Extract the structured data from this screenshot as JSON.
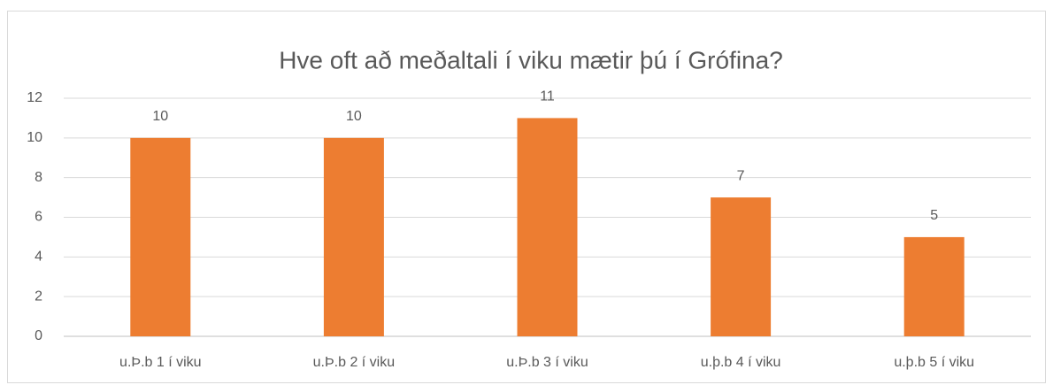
{
  "chart_data": {
    "type": "bar",
    "title": "Hve oft að meðaltali í viku mætir þú í Grófina?",
    "categories": [
      "u.Þ.b 1 í viku",
      "u.Þ.b 2 í viku",
      "u.Þ.b 3 í viku",
      "u.þ.b 4 í viku",
      "u.þ.b 5 í viku"
    ],
    "values": [
      10,
      10,
      11,
      7,
      5
    ],
    "color": "#ed7d31",
    "ylim": [
      0,
      12
    ],
    "yticks": [
      0,
      2,
      4,
      6,
      8,
      10,
      12
    ],
    "grid": true
  }
}
